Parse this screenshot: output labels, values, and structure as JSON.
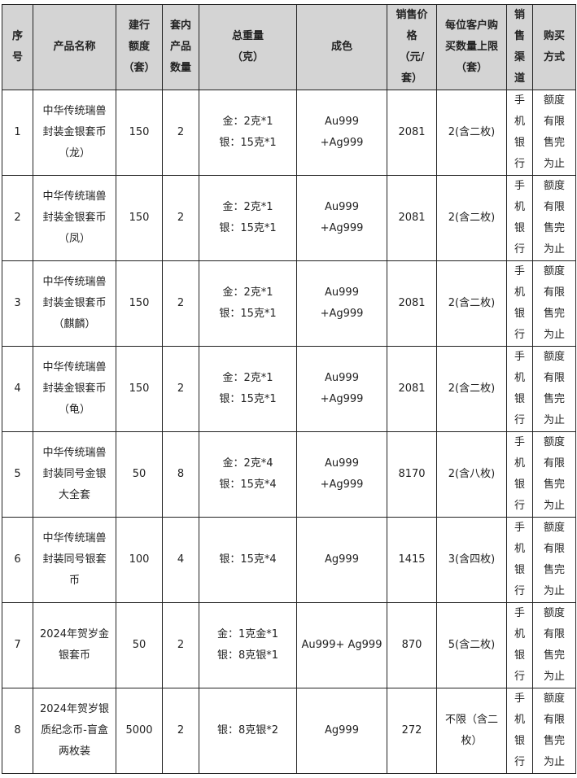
{
  "headers": [
    "序号",
    "产品名称",
    "建行额度（套）",
    "套内产品数量",
    "总重量（克）",
    "成色",
    "销售价格（元/套）",
    "每位客户购买数量上限（套）",
    "销售渠道",
    "购买方式"
  ],
  "header_display": [
    "序\n号",
    "产品名称",
    "建行\n额度\n（套）",
    "套内\n产品\n数量",
    "总重量\n（克）",
    "成色",
    "销售价\n格\n（元/\n套）",
    "每位客户购\n买数量上限\n（套）",
    "销\n售\n渠\n道",
    "购买\n方式"
  ],
  "rows": [
    {
      "no": "1",
      "name": "中华传统瑞兽\n封装金银套币\n（龙）",
      "quota": "150",
      "count": "2",
      "weight": "金：2克*1\n银：15克*1",
      "fineness": "Au999\n+Ag999",
      "price": "2081",
      "limit": "2(含二枚)",
      "channel": "手\n机\n银\n行",
      "method": "额度\n有限\n售完\n为止"
    },
    {
      "no": "2",
      "name": "中华传统瑞兽\n封装金银套币\n（凤）",
      "quota": "150",
      "count": "2",
      "weight": "金：2克*1\n银：15克*1",
      "fineness": "Au999\n+Ag999",
      "price": "2081",
      "limit": "2(含二枚)",
      "channel": "手\n机\n银\n行",
      "method": "额度\n有限\n售完\n为止"
    },
    {
      "no": "3",
      "name": "中华传统瑞兽\n封装金银套币\n（麒麟）",
      "quota": "150",
      "count": "2",
      "weight": "金：2克*1\n银：15克*1",
      "fineness": "Au999\n+Ag999",
      "price": "2081",
      "limit": "2(含二枚)",
      "channel": "手\n机\n银\n行",
      "method": "额度\n有限\n售完\n为止"
    },
    {
      "no": "4",
      "name": "中华传统瑞兽\n封装金银套币\n（龟）",
      "quota": "150",
      "count": "2",
      "weight": "金：2克*1\n银：15克*1",
      "fineness": "Au999\n+Ag999",
      "price": "2081",
      "limit": "2(含二枚)",
      "channel": "手\n机\n银\n行",
      "method": "额度\n有限\n售完\n为止"
    },
    {
      "no": "5",
      "name": "中华传统瑞兽\n封装同号金银\n大全套",
      "quota": "50",
      "count": "8",
      "weight": "金：2克*4\n银：15克*4",
      "fineness": "Au999\n+Ag999",
      "price": "8170",
      "limit": "2(含八枚)",
      "channel": "手\n机\n银\n行",
      "method": "额度\n有限\n售完\n为止"
    },
    {
      "no": "6",
      "name": "中华传统瑞兽\n封装同号银套\n币",
      "quota": "100",
      "count": "4",
      "weight": "银：15克*4",
      "fineness": "Ag999",
      "price": "1415",
      "limit": "3(含四枚)",
      "channel": "手\n机\n银\n行",
      "method": "额度\n有限\n售完\n为止"
    },
    {
      "no": "7",
      "name": "2024年贺岁金\n银套币",
      "quota": "50",
      "count": "2",
      "weight": "金：1克金*1\n银：8克银*1",
      "fineness": "Au999+ Ag999",
      "price": "870",
      "limit": "5(含二枚)",
      "channel": "手\n机\n银\n行",
      "method": "额度\n有限\n售完\n为止"
    },
    {
      "no": "8",
      "name": "2024年贺岁银\n质纪念币-盲盒\n两枚装",
      "quota": "5000",
      "count": "2",
      "weight": "银：8克银*2",
      "fineness": "Ag999",
      "price": "272",
      "limit": "不限（含二\n枚）",
      "channel": "手\n机\n银\n行",
      "method": "额度\n有限\n售完\n为止"
    }
  ],
  "colors": {
    "header_bg": "#d4d4d4",
    "border": "#222222"
  }
}
